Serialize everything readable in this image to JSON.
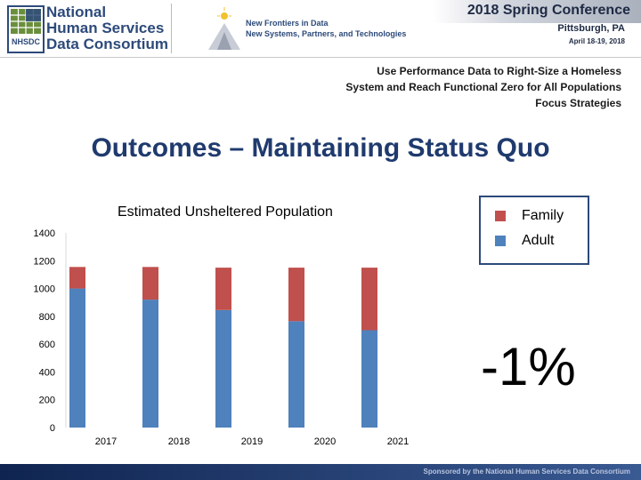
{
  "header": {
    "org_name_lines": [
      "National",
      "Human Services",
      "Data Consortium"
    ],
    "logo_abbr": "NHSDC",
    "tagline_lines": [
      "New Frontiers in Data",
      "New Systems, Partners, and Technologies"
    ],
    "conference_title": "2018 Spring Conference",
    "city": "Pittsburgh, PA",
    "dates": "April 18-19, 2018"
  },
  "subtitle_lines": [
    "Use Performance Data to Right-Size a Homeless",
    "System and Reach Functional Zero for All Populations",
    "Focus Strategies"
  ],
  "slide_title": "Outcomes – Maintaining Status Quo",
  "annotation": "-1%",
  "footer_text": "Sponsored by the National Human Services Data Consortium",
  "colors": {
    "family": "#c0504d",
    "adult": "#4f81bd",
    "brand": "#2d4a7a"
  },
  "chart_data": {
    "type": "bar",
    "stacked": true,
    "title": "Estimated Unsheltered Population",
    "categories": [
      "2017",
      "2018",
      "2019",
      "2020",
      "2021"
    ],
    "series": [
      {
        "name": "Adult",
        "values": [
          1000,
          920,
          845,
          765,
          700
        ]
      },
      {
        "name": "Family",
        "values": [
          155,
          235,
          305,
          385,
          450
        ]
      }
    ],
    "yticks": [
      0,
      200,
      400,
      600,
      800,
      1000,
      1200,
      1400
    ],
    "ylim": [
      0,
      1400
    ],
    "legend_position": "top-right",
    "grid": false
  }
}
